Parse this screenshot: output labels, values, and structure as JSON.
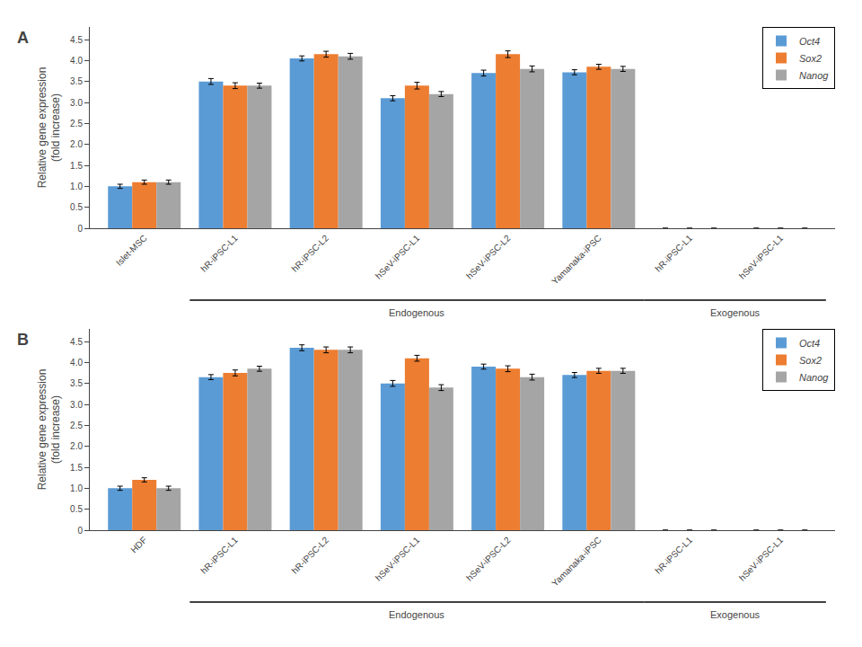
{
  "chart_data": [
    {
      "type": "bar",
      "title": "A",
      "ylabel": "Relative gene expression\n(fold increase)",
      "categories": [
        "Islet-MSC",
        "hR-iPSC-L1",
        "hR-iPSC-L2",
        "hSeV-iPSC-L1",
        "hSeV-iPSC-L2",
        "Yamanaka-iPSC",
        "hR-iPSC-L1",
        "hSeV-iPSC-L1"
      ],
      "series": [
        {
          "name": "Oct4",
          "color": "#5B9BD5",
          "values": [
            1.0,
            3.5,
            4.05,
            3.1,
            3.7,
            3.72,
            0.0,
            0.0
          ],
          "errors": [
            0.05,
            0.07,
            0.06,
            0.06,
            0.07,
            0.06,
            0.0,
            0.0
          ]
        },
        {
          "name": "Sox2",
          "color": "#ED7D31",
          "values": [
            1.1,
            3.4,
            4.15,
            3.4,
            4.15,
            3.85,
            0.0,
            0.0
          ],
          "errors": [
            0.05,
            0.07,
            0.07,
            0.08,
            0.08,
            0.06,
            0.0,
            0.0
          ]
        },
        {
          "name": "Nanog",
          "color": "#A5A5A5",
          "values": [
            1.1,
            3.4,
            4.1,
            3.2,
            3.8,
            3.8,
            0.0,
            0.0
          ],
          "errors": [
            0.05,
            0.06,
            0.07,
            0.06,
            0.07,
            0.06,
            0.0,
            0.0
          ]
        }
      ],
      "ylim": [
        0,
        4.8
      ],
      "yticks": [
        0,
        0.5,
        {
          "value": 1.0,
          "label": "1.0"
        },
        1.5,
        {
          "value": 2.0,
          "label": "2.0"
        },
        2.5,
        {
          "value": 3.0,
          "label": "3.0"
        },
        3.5,
        {
          "value": 4.0,
          "label": "4.0"
        },
        4.5
      ],
      "grid": false,
      "legend": "upper right",
      "annotations": [
        {
          "text": "Endogenous",
          "from": 1,
          "to": 5
        },
        {
          "text": "Exogenous",
          "from": 6,
          "to": 7
        }
      ]
    },
    {
      "type": "bar",
      "title": "B",
      "ylabel": "Relative gene expression\n(fold increase)",
      "categories": [
        "HDF",
        "hR-iPSC-L1",
        "hR-iPSC-L2",
        "hSeV-iPSC-L1",
        "hSeV-iPSC-L2",
        "Yamanaka-iPSC",
        "hR-iPSC-L1",
        "hSeV-iPSC-L1"
      ],
      "series": [
        {
          "name": "Oct4",
          "color": "#5B9BD5",
          "values": [
            1.0,
            3.65,
            4.35,
            3.5,
            3.9,
            3.7,
            0.0,
            0.0
          ],
          "errors": [
            0.05,
            0.06,
            0.07,
            0.07,
            0.06,
            0.06,
            0.0,
            0.0
          ]
        },
        {
          "name": "Sox2",
          "color": "#ED7D31",
          "values": [
            1.2,
            3.75,
            4.3,
            4.1,
            3.85,
            3.8,
            0.0,
            0.0
          ],
          "errors": [
            0.05,
            0.07,
            0.07,
            0.07,
            0.07,
            0.06,
            0.0,
            0.0
          ]
        },
        {
          "name": "Nanog",
          "color": "#A5A5A5",
          "values": [
            1.0,
            3.85,
            4.3,
            3.4,
            3.65,
            3.8,
            0.0,
            0.0
          ],
          "errors": [
            0.05,
            0.06,
            0.07,
            0.07,
            0.07,
            0.06,
            0.0,
            0.0
          ]
        }
      ],
      "ylim": [
        0,
        4.8
      ],
      "yticks": [
        0,
        0.5,
        {
          "value": 1.0,
          "label": "1.0"
        },
        1.5,
        {
          "value": 2.0,
          "label": "2.0"
        },
        2.5,
        {
          "value": 3.0,
          "label": "3.0"
        },
        3.5,
        {
          "value": 4.0,
          "label": "4.0"
        },
        4.5
      ],
      "grid": false,
      "legend": "upper right",
      "annotations": [
        {
          "text": "Endogenous",
          "from": 1,
          "to": 5
        },
        {
          "text": "Exogenous",
          "from": 6,
          "to": 7
        }
      ]
    }
  ]
}
